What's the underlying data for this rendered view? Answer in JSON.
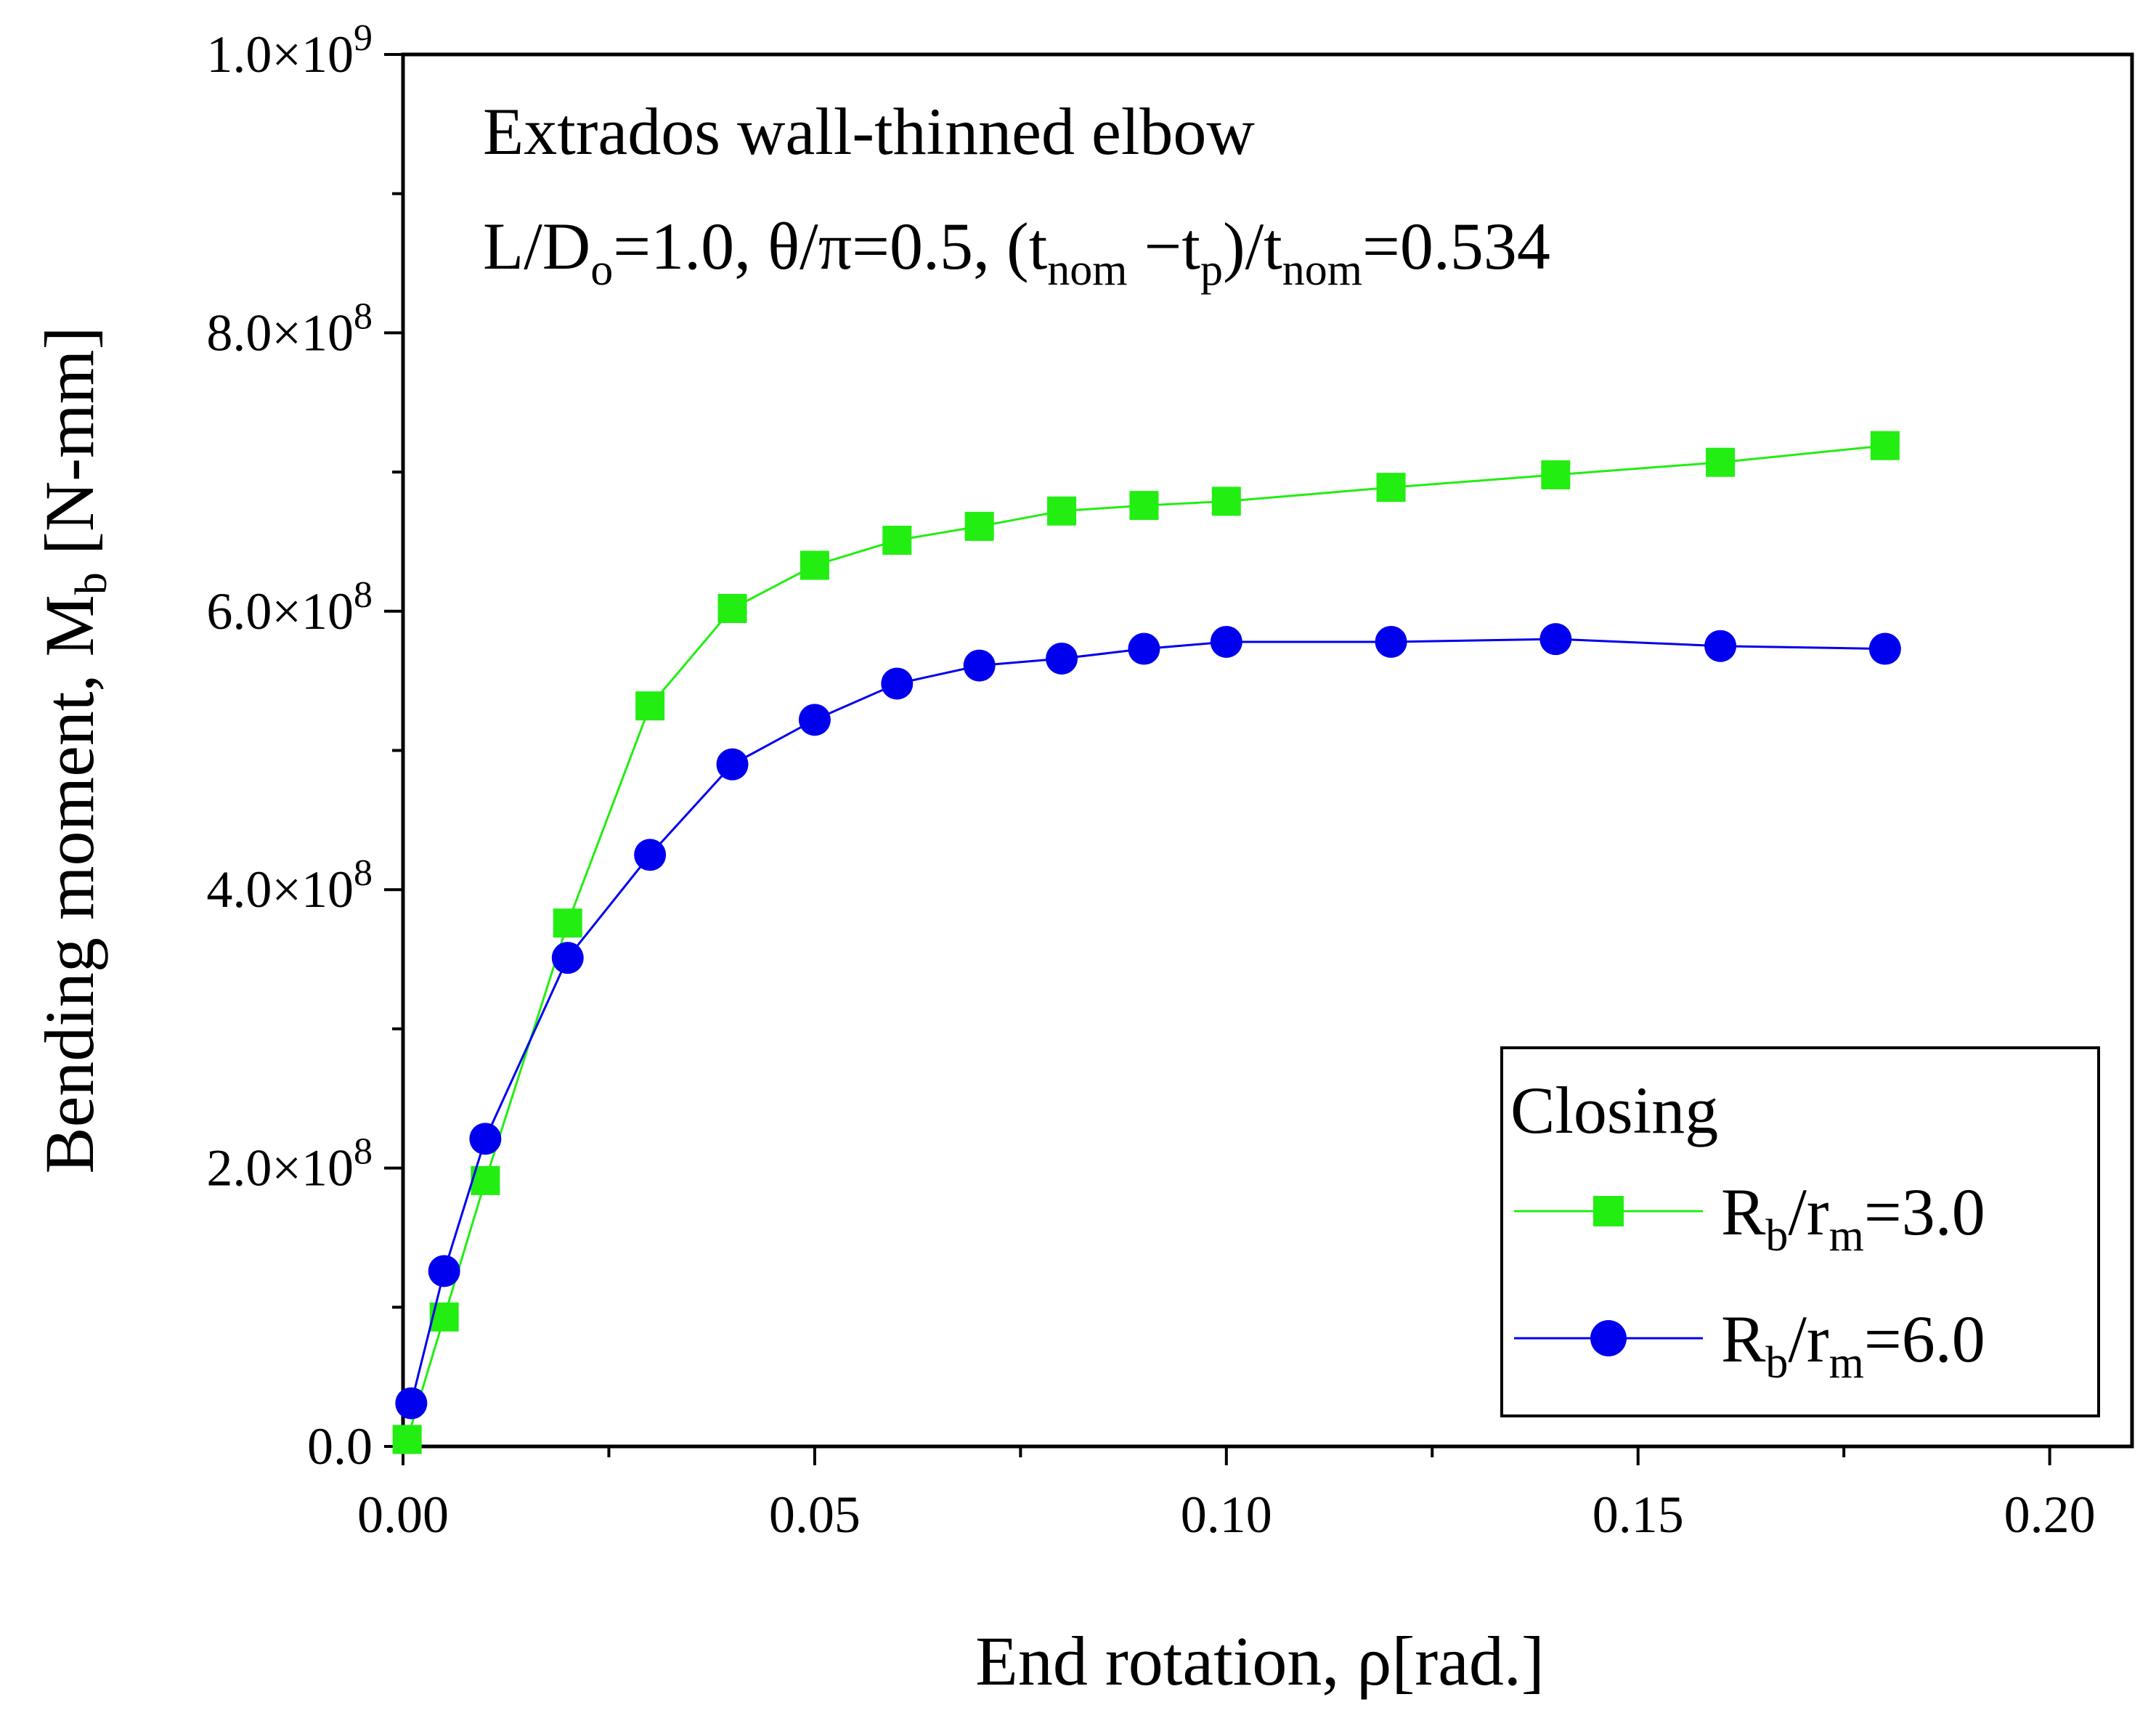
{
  "chart_data": {
    "type": "line",
    "title": "",
    "xlabel": "End rotation, ρ[rad.]",
    "ylabel": {
      "main": "Bending moment, M",
      "sub": "b",
      "unit": " [N-mm]"
    },
    "xlim": [
      0,
      0.21
    ],
    "ylim": [
      0,
      1000000000
    ],
    "x_ticks": [
      0.0,
      0.05,
      0.1,
      0.15,
      0.2
    ],
    "x_tick_labels": [
      "0.00",
      "0.05",
      "0.10",
      "0.15",
      "0.20"
    ],
    "x_minor_ticks": [
      0.025,
      0.075,
      0.125,
      0.175
    ],
    "y_ticks": [
      0,
      200000000,
      400000000,
      600000000,
      800000000,
      1000000000
    ],
    "y_tick_labels": [
      {
        "base": "0.0",
        "exp": ""
      },
      {
        "base": "2.0×10",
        "exp": "8"
      },
      {
        "base": "4.0×10",
        "exp": "8"
      },
      {
        "base": "6.0×10",
        "exp": "8"
      },
      {
        "base": "8.0×10",
        "exp": "8"
      },
      {
        "base": "1.0×10",
        "exp": "9"
      }
    ],
    "y_minor_ticks": [
      100000000,
      300000000,
      500000000,
      700000000,
      900000000
    ],
    "grid": false,
    "annotation": {
      "line1": "Extrados wall-thinned elbow",
      "line2": {
        "p1": "L/D",
        "p1_sub": "o",
        "p2": "=1.0, θ/π=0.5, (t",
        "p2_sub": "nom",
        "p3": " −t",
        "p3_sub": "p",
        "p4": ")/t",
        "p4_sub": "nom",
        "p5": "=0.534"
      }
    },
    "legend": {
      "position": "bottom-right",
      "title": "Closing",
      "entries": [
        {
          "pre": " R",
          "sub1": "b",
          "mid": "/r",
          "sub2": "m",
          "post": "=3.0"
        },
        {
          "pre": "R",
          "sub1": "b",
          "mid": "/r",
          "sub2": "m",
          "post": "=6.0"
        }
      ]
    },
    "series": [
      {
        "name": "Rb/rm=3.0",
        "color": "#22ee11",
        "marker": "square",
        "x": [
          0.0005,
          0.005,
          0.01,
          0.02,
          0.03,
          0.04,
          0.05,
          0.06,
          0.07,
          0.08,
          0.09,
          0.1,
          0.12,
          0.14,
          0.16,
          0.18
        ],
        "y": [
          5000000,
          93000000,
          191000000,
          376000000,
          532000000,
          602000000,
          633000000,
          651000000,
          661000000,
          672000000,
          676000000,
          679000000,
          689000000,
          698000000,
          707000000,
          719000000
        ]
      },
      {
        "name": "Rb/rm=6.0",
        "color": "#0000ee",
        "marker": "circle",
        "x": [
          0.001,
          0.005,
          0.01,
          0.02,
          0.03,
          0.04,
          0.05,
          0.06,
          0.07,
          0.08,
          0.09,
          0.1,
          0.12,
          0.14,
          0.16,
          0.18
        ],
        "y": [
          31000000,
          126000000,
          221000000,
          351000000,
          425000000,
          490000000,
          522000000,
          548000000,
          561000000,
          566000000,
          573000000,
          578000000,
          578000000,
          580000000,
          575000000,
          573000000
        ]
      }
    ]
  }
}
